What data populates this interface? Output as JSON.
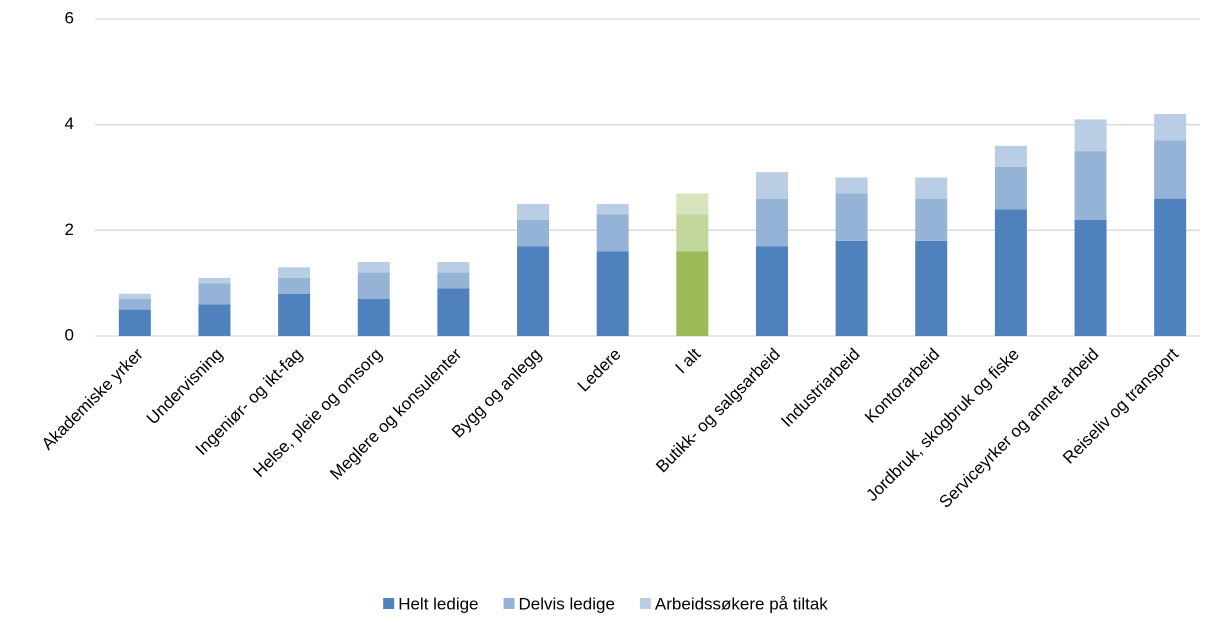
{
  "chart_data": {
    "type": "stacked_bar",
    "categories": [
      "Akademiske yrker",
      "Undervisning",
      "Ingeniør- og ikt-fag",
      "Helse, pleie og omsorg",
      "Meglere og konsulenter",
      "Bygg og anlegg",
      "Ledere",
      "I alt",
      "Butikk- og salgsarbeid",
      "Industriarbeid",
      "Kontorarbeid",
      "Jordbruk, skogbruk og fiske",
      "Serviceyrker og annet arbeid",
      "Reiseliv og transport"
    ],
    "series": [
      {
        "name": "Helt ledige",
        "color": "#4f81bd",
        "values": [
          0.5,
          0.6,
          0.8,
          0.7,
          0.9,
          1.7,
          1.6,
          1.6,
          1.7,
          1.8,
          1.8,
          2.4,
          2.2,
          2.6
        ]
      },
      {
        "name": "Delvis ledige",
        "color": "#95b3d7",
        "values": [
          0.2,
          0.4,
          0.3,
          0.5,
          0.3,
          0.5,
          0.7,
          0.7,
          0.9,
          0.9,
          0.8,
          0.8,
          1.3,
          1.1
        ]
      },
      {
        "name": "Arbeidssøkere på tiltak",
        "color": "#b9cde5",
        "values": [
          0.1,
          0.1,
          0.2,
          0.2,
          0.2,
          0.3,
          0.2,
          0.4,
          0.5,
          0.3,
          0.4,
          0.4,
          0.6,
          0.5
        ]
      }
    ],
    "highlight": {
      "category": "I alt",
      "colors": [
        "#9bbb59",
        "#c3d69b",
        "#d7e4bd"
      ]
    },
    "ylim": [
      0,
      6
    ],
    "yticks": [
      0,
      2,
      4,
      6
    ],
    "grid": true,
    "legend": "bottom"
  }
}
